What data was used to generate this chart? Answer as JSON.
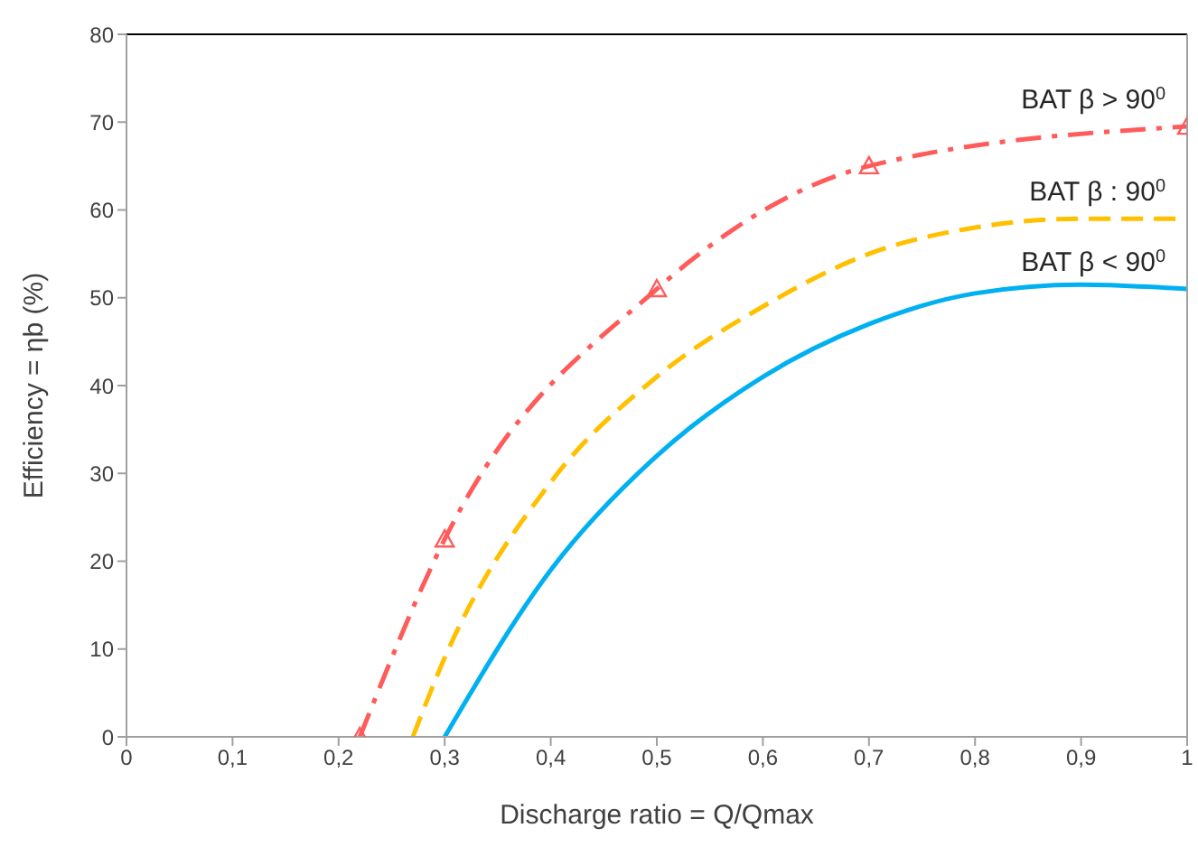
{
  "chart_data": {
    "type": "line",
    "xlabel": "Discharge ratio = Q/Qmax",
    "ylabel": "Efficiency = ηb (%)",
    "xlim": [
      0,
      1
    ],
    "xticks": [
      0,
      {
        "value": 0.1,
        "label": "0,1"
      },
      {
        "value": 0.2,
        "label": "0,2"
      },
      {
        "value": 0.3,
        "label": "0,3"
      },
      {
        "value": 0.4,
        "label": "0,4"
      },
      {
        "value": 0.5,
        "label": "0,5"
      },
      {
        "value": 0.6,
        "label": "0,6"
      },
      {
        "value": 0.7,
        "label": "0,7"
      },
      {
        "value": 0.8,
        "label": "0,8"
      },
      {
        "value": 0.9,
        "label": "0,9"
      },
      1
    ],
    "ylim": [
      0,
      80
    ],
    "yticks": [
      0,
      10,
      20,
      30,
      40,
      50,
      60,
      70,
      80
    ],
    "series": [
      {
        "name": "BAT β > 90$^{0}$",
        "color": "#ff5b5b",
        "line_style": "dashdot",
        "marker": "triangle",
        "x": [
          0.22,
          0.3,
          0.5,
          0.7,
          1
        ],
        "values": [
          0,
          22.5,
          51,
          65,
          69.5
        ]
      },
      {
        "name": "BAT β : 90$^{0}$",
        "color": "#ffc000",
        "line_style": "dashed",
        "marker": "none",
        "x": [
          0.27,
          0.3,
          0.4,
          0.5,
          0.6,
          0.7,
          0.8,
          0.9,
          1
        ],
        "values": [
          0,
          9,
          29,
          41,
          49,
          55,
          58,
          59,
          59
        ]
      },
      {
        "name": "BAT β < 90$^{0}$",
        "color": "#00b0f0",
        "line_style": "solid",
        "marker": "none",
        "x": [
          0.3,
          0.4,
          0.5,
          0.6,
          0.7,
          0.8,
          0.9,
          1
        ],
        "values": [
          0,
          19,
          32,
          41,
          47,
          50.5,
          51.5,
          51
        ]
      }
    ]
  }
}
